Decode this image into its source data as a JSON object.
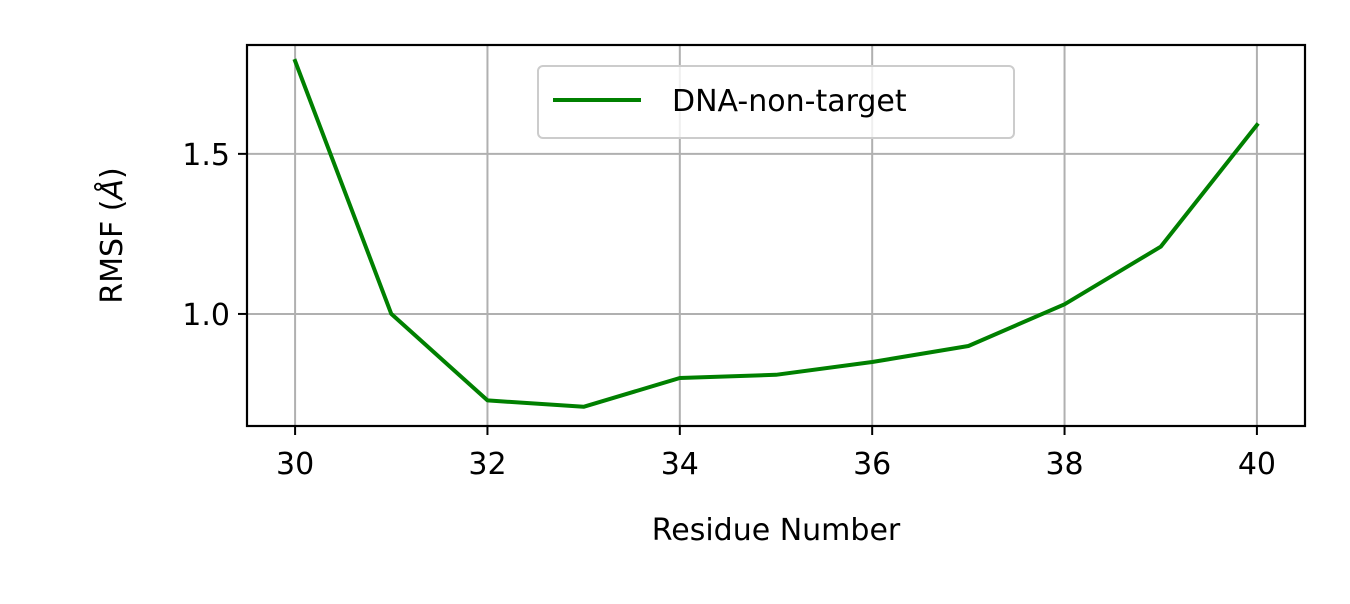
{
  "chart_data": {
    "type": "line",
    "xlabel": "Residue Number",
    "ylabel_main": "RMSF (",
    "ylabel_unit": "Å",
    "ylabel_close": ")",
    "xlim": [
      29.5,
      40.5
    ],
    "ylim": [
      0.65,
      1.84
    ],
    "xticks": [
      30,
      32,
      34,
      36,
      38,
      40
    ],
    "xtick_labels": [
      "30",
      "32",
      "34",
      "36",
      "38",
      "40"
    ],
    "yticks": [
      1.0,
      1.5
    ],
    "ytick_labels": [
      "1.0",
      "1.5"
    ],
    "grid": true,
    "legend_position": "top-center",
    "series": [
      {
        "name": "DNA-non-target",
        "color": "#008000",
        "x": [
          30,
          31,
          32,
          33,
          34,
          35,
          36,
          37,
          38,
          39,
          40
        ],
        "y": [
          1.79,
          1.0,
          0.73,
          0.71,
          0.8,
          0.81,
          0.85,
          0.9,
          1.03,
          1.21,
          1.59
        ]
      }
    ]
  }
}
